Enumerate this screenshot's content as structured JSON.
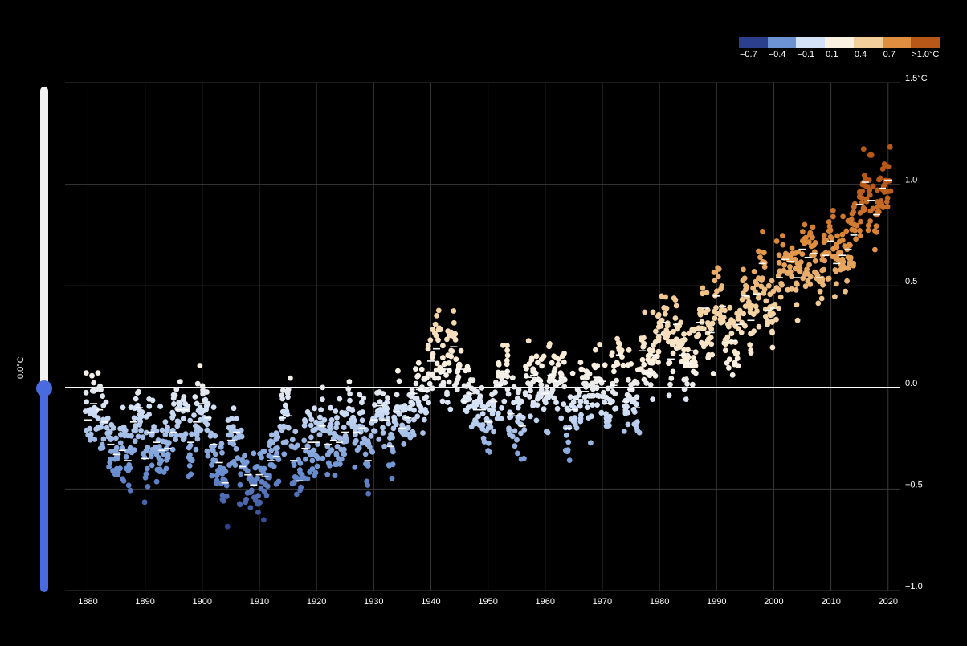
{
  "legend": {
    "colors": [
      "#2b3f8c",
      "#6d93d3",
      "#d4e2f7",
      "#fbf1e2",
      "#f3cf9c",
      "#df8f3f",
      "#b85818"
    ],
    "labels": [
      "−0.7",
      "−0.4",
      "−0.1",
      "0.1",
      "0.4",
      "0.7",
      ">1.0°C"
    ]
  },
  "slider": {
    "readout": "0.0°C",
    "value": 0.0,
    "min": -1.0,
    "max": 1.5,
    "colors": {
      "above": "#f2f2f2",
      "below": "#4a6be0"
    }
  },
  "chart_data": {
    "type": "scatter",
    "title": "",
    "xlabel": "",
    "ylabel": "",
    "xlim": [
      1876,
      2022
    ],
    "ylim": [
      -1.0,
      1.5
    ],
    "x_ticks": [
      1880,
      1890,
      1900,
      1910,
      1920,
      1930,
      1940,
      1950,
      1960,
      1970,
      1980,
      1990,
      2000,
      2010,
      2020
    ],
    "y_ticks": [
      {
        "value": 1.5,
        "label": "1.5°C"
      },
      {
        "value": 1.0,
        "label": "1.0"
      },
      {
        "value": 0.5,
        "label": "0.5"
      },
      {
        "value": 0.0,
        "label": "0.0"
      },
      {
        "value": -0.5,
        "label": "−0.5"
      },
      {
        "value": -1.0,
        "label": "−1.0"
      }
    ],
    "grid": true,
    "reference_line": 0.0,
    "points_per_year": 12,
    "annual_mean_marker": "white dash",
    "series": [
      {
        "start_year": 1880,
        "annual_means": [
          -0.16,
          -0.08,
          -0.11,
          -0.17,
          -0.28,
          -0.33,
          -0.31,
          -0.36,
          -0.17,
          -0.1,
          -0.35,
          -0.22,
          -0.27,
          -0.31,
          -0.3,
          -0.22,
          -0.11,
          -0.11,
          -0.27,
          -0.17,
          -0.08,
          -0.15,
          -0.28,
          -0.37,
          -0.47,
          -0.26,
          -0.22,
          -0.39,
          -0.43,
          -0.48,
          -0.43,
          -0.44,
          -0.36,
          -0.34,
          -0.15,
          -0.14,
          -0.36,
          -0.46,
          -0.3,
          -0.27,
          -0.27,
          -0.19,
          -0.28,
          -0.26,
          -0.27,
          -0.22,
          -0.1,
          -0.22,
          -0.2,
          -0.36,
          -0.16,
          -0.09,
          -0.16,
          -0.29,
          -0.12,
          -0.2,
          -0.15,
          -0.03,
          -0.01,
          -0.02,
          0.13,
          0.19,
          0.07,
          0.09,
          0.2,
          0.09,
          -0.07,
          -0.03,
          -0.11,
          -0.11,
          -0.17,
          -0.07,
          0.01,
          0.08,
          -0.13,
          -0.14,
          -0.19,
          0.05,
          0.06,
          0.03,
          -0.03,
          0.06,
          0.03,
          0.05,
          -0.2,
          -0.11,
          -0.06,
          -0.02,
          -0.08,
          0.05,
          0.03,
          -0.08,
          0.01,
          0.16,
          -0.07,
          -0.01,
          -0.1,
          0.18,
          0.07,
          0.16,
          0.26,
          0.32,
          0.14,
          0.31,
          0.16,
          0.12,
          0.18,
          0.32,
          0.39,
          0.27,
          0.45,
          0.4,
          0.22,
          0.23,
          0.31,
          0.45,
          0.33,
          0.46,
          0.61,
          0.38,
          0.39,
          0.54,
          0.63,
          0.62,
          0.54,
          0.68,
          0.64,
          0.66,
          0.54,
          0.65,
          0.72,
          0.61,
          0.65,
          0.68,
          0.75,
          0.9,
          1.01,
          0.92,
          0.85,
          0.98,
          1.02
        ]
      }
    ]
  }
}
